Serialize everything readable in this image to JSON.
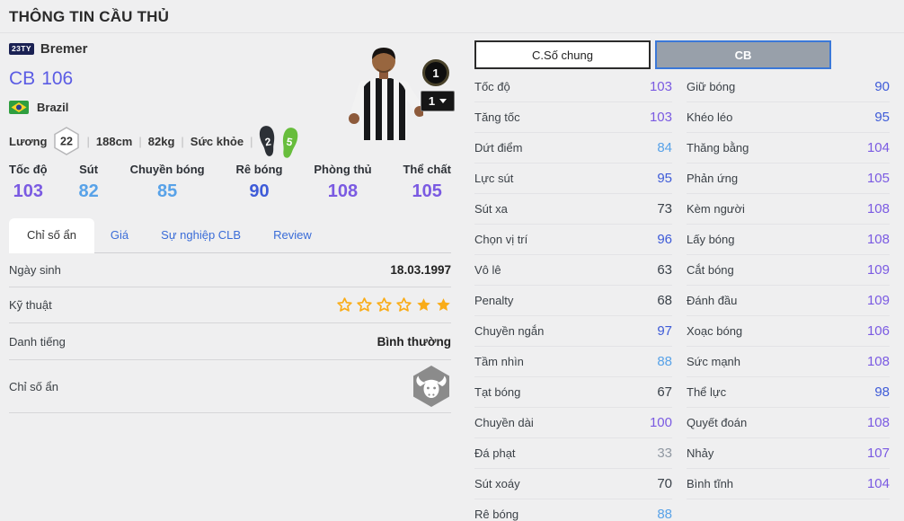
{
  "colors": {
    "purple": "#7a5ae2",
    "blue": "#3e5bd8",
    "light_blue": "#58a2e8",
    "dark": "#3a4149",
    "muted": "#9098a2",
    "star": "#F9AC18",
    "tab_active_border": "#3b78d8"
  },
  "header": {
    "title": "THÔNG TIN CẦU THỦ"
  },
  "player": {
    "season_badge": "23TY",
    "name": "Bremer",
    "position": "CB",
    "overall": "106",
    "nation": "Brazil",
    "salary_label": "Lương",
    "salary": "22",
    "height": "188cm",
    "weight": "82kg",
    "stamina_label": "Sức khỏe",
    "weak_foot": "2",
    "preferred_foot": "5",
    "upgrade_level": "1",
    "level_selector": "1"
  },
  "summary": [
    {
      "label": "Tốc độ",
      "value": 103
    },
    {
      "label": "Sút",
      "value": 82
    },
    {
      "label": "Chuyền bóng",
      "value": 85
    },
    {
      "label": "Rê bóng",
      "value": 90
    },
    {
      "label": "Phòng thủ",
      "value": 108
    },
    {
      "label": "Thể chất",
      "value": 105
    }
  ],
  "tabs": [
    {
      "label": "Chỉ số ẩn",
      "active": true
    },
    {
      "label": "Giá",
      "active": false
    },
    {
      "label": "Sự nghiệp CLB",
      "active": false
    },
    {
      "label": "Review",
      "active": false
    }
  ],
  "info_table": {
    "birth_label": "Ngày sinh",
    "birth_value": "18.03.1997",
    "skill_label": "Kỹ thuật",
    "stars_outline": 4,
    "stars_filled": 2,
    "fame_label": "Danh tiếng",
    "fame_value": "Bình thường",
    "hidden_label": "Chỉ số ẩn",
    "hidden_icon": "buffalo-hexagon-icon"
  },
  "stats_panel": {
    "tab_general": "C.Số chung",
    "tab_position": "CB",
    "left": [
      {
        "label": "Tốc độ",
        "value": 103
      },
      {
        "label": "Tăng tốc",
        "value": 103
      },
      {
        "label": "Dứt điểm",
        "value": 84
      },
      {
        "label": "Lực sút",
        "value": 95
      },
      {
        "label": "Sút xa",
        "value": 73
      },
      {
        "label": "Chọn vị trí",
        "value": 96
      },
      {
        "label": "Vô lê",
        "value": 63
      },
      {
        "label": "Penalty",
        "value": 68
      },
      {
        "label": "Chuyền ngắn",
        "value": 97
      },
      {
        "label": "Tầm nhìn",
        "value": 88
      },
      {
        "label": "Tạt bóng",
        "value": 67
      },
      {
        "label": "Chuyền dài",
        "value": 100
      },
      {
        "label": "Đá phạt",
        "value": 33
      },
      {
        "label": "Sút xoáy",
        "value": 70
      },
      {
        "label": "Rê bóng",
        "value": 88
      }
    ],
    "right": [
      {
        "label": "Giữ bóng",
        "value": 90
      },
      {
        "label": "Khéo léo",
        "value": 95
      },
      {
        "label": "Thăng bằng",
        "value": 104
      },
      {
        "label": "Phản ứng",
        "value": 105
      },
      {
        "label": "Kèm người",
        "value": 108
      },
      {
        "label": "Lấy bóng",
        "value": 108
      },
      {
        "label": "Cắt bóng",
        "value": 109
      },
      {
        "label": "Đánh đầu",
        "value": 109
      },
      {
        "label": "Xoạc bóng",
        "value": 106
      },
      {
        "label": "Sức mạnh",
        "value": 108
      },
      {
        "label": "Thể lực",
        "value": 98
      },
      {
        "label": "Quyết đoán",
        "value": 108
      },
      {
        "label": "Nhảy",
        "value": 107
      },
      {
        "label": "Bình tĩnh",
        "value": 104
      }
    ]
  }
}
